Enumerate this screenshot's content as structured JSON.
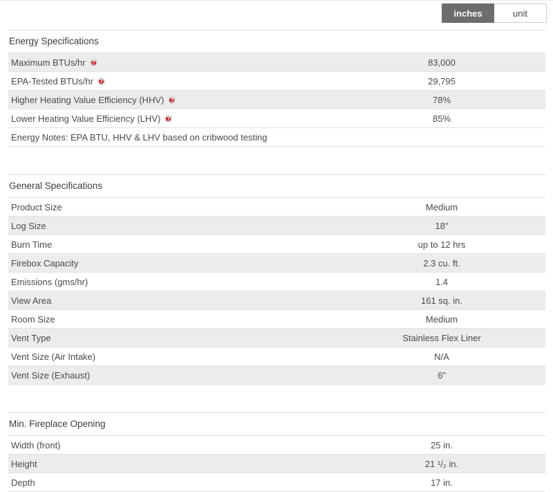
{
  "unit_toggle": {
    "options": [
      {
        "label": "inches",
        "selected": true
      },
      {
        "label": "unit",
        "selected": false
      }
    ]
  },
  "icons": {
    "help": "?"
  },
  "colors": {
    "accent_red": "#c32128",
    "toggle_selected_bg": "#6d6d6d",
    "row_shaded_bg": "#ececec",
    "row_border": "#e2e2e2",
    "text": "#4a4a4a"
  },
  "sections": [
    {
      "title": "Energy Specifications",
      "rows": [
        {
          "label": "Maximum BTUs/hr",
          "has_help": true,
          "value": "83,000",
          "shaded": true
        },
        {
          "label": "EPA-Tested BTUs/hr",
          "has_help": true,
          "value": "29,795",
          "shaded": false
        },
        {
          "label": "Higher Heating Value Efficiency (HHV)",
          "has_help": true,
          "value": "78%",
          "shaded": true
        },
        {
          "label": "Lower Heating Value Efficiency (LHV)",
          "has_help": true,
          "value": "85%",
          "shaded": false
        },
        {
          "label": "Energy Notes: EPA BTU, HHV & LHV based on cribwood testing",
          "has_help": false,
          "value": "",
          "shaded": false
        }
      ]
    },
    {
      "title": "General Specifications",
      "rows": [
        {
          "label": "Product Size",
          "has_help": false,
          "value": "Medium",
          "shaded": false
        },
        {
          "label": "Log Size",
          "has_help": false,
          "value": "18\"",
          "shaded": true
        },
        {
          "label": "Burn Time",
          "has_help": false,
          "value": "up to 12 hrs",
          "shaded": false
        },
        {
          "label": "Firebox Capacity",
          "has_help": false,
          "value": "2.3 cu. ft.",
          "shaded": true
        },
        {
          "label": "Emissions (gms/hr)",
          "has_help": false,
          "value": "1.4",
          "shaded": false
        },
        {
          "label": "View Area",
          "has_help": false,
          "value": "161 sq. in.",
          "shaded": true
        },
        {
          "label": "Room Size",
          "has_help": false,
          "value": "Medium",
          "shaded": false
        },
        {
          "label": "Vent Type",
          "has_help": false,
          "value": "Stainless Flex Liner",
          "shaded": true
        },
        {
          "label": "Vent Size (Air Intake)",
          "has_help": false,
          "value": "N/A",
          "shaded": false
        },
        {
          "label": "Vent Size (Exhaust)",
          "has_help": false,
          "value": "6\"",
          "shaded": true
        }
      ]
    },
    {
      "title": "Min. Fireplace Opening",
      "rows": [
        {
          "label": "Width (front)",
          "has_help": false,
          "value": "25 in.",
          "shaded": false
        },
        {
          "label": "Height",
          "has_help": false,
          "value": "21 ¹/₂ in.",
          "shaded": true
        },
        {
          "label": "Depth",
          "has_help": false,
          "value": "17 in.",
          "shaded": false
        }
      ]
    }
  ]
}
